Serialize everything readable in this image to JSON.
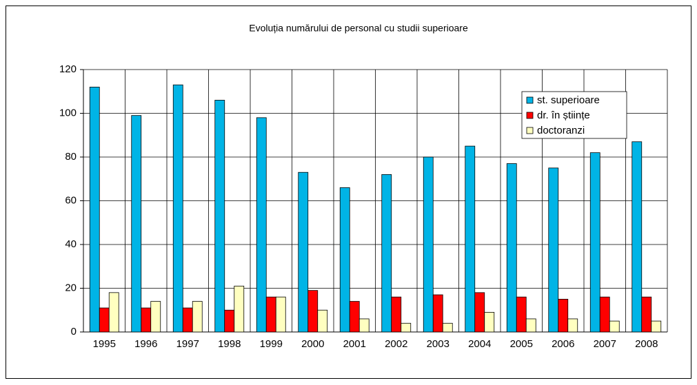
{
  "chart_data": {
    "type": "bar",
    "title": "Evoluția numărului de personal cu studii superioare",
    "categories": [
      "1995",
      "1996",
      "1997",
      "1998",
      "1999",
      "2000",
      "2001",
      "2002",
      "2003",
      "2004",
      "2005",
      "2006",
      "2007",
      "2008"
    ],
    "series": [
      {
        "name": "st. superioare",
        "color": "#00b4e6",
        "values": [
          112,
          99,
          113,
          106,
          98,
          73,
          66,
          72,
          80,
          85,
          77,
          75,
          82,
          87
        ]
      },
      {
        "name": "dr. în științe",
        "color": "#ff0000",
        "values": [
          11,
          11,
          11,
          10,
          16,
          19,
          14,
          16,
          17,
          18,
          16,
          15,
          16,
          16
        ]
      },
      {
        "name": "doctoranzi",
        "color": "#ffffc0",
        "values": [
          18,
          14,
          14,
          21,
          16,
          10,
          6,
          4,
          4,
          9,
          6,
          6,
          5,
          5
        ]
      }
    ],
    "ylim": [
      0,
      120
    ],
    "yticks": [
      0,
      20,
      40,
      60,
      80,
      100,
      120
    ],
    "grid": true,
    "legend": "upper right"
  }
}
